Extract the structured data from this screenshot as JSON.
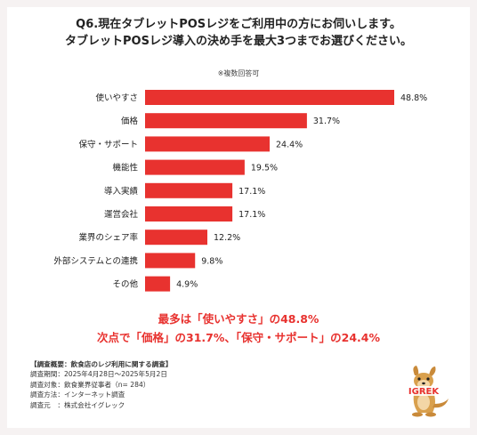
{
  "title_lines": [
    "Q6.現在タブレットPOSレジをご利用中の方にお伺いします。",
    "タブレットPOSレジ導入の決め手を最大3つまでお選びください。"
  ],
  "note": "※複数回答可",
  "chart_data": {
    "type": "bar",
    "orientation": "horizontal",
    "categories": [
      "使いやすさ",
      "価格",
      "保守・サポート",
      "機能性",
      "導入実績",
      "運営会社",
      "業界のシェア率",
      "外部システムとの連携",
      "その他"
    ],
    "values": [
      48.8,
      31.7,
      24.4,
      19.5,
      17.1,
      17.1,
      12.2,
      9.8,
      4.9
    ],
    "value_labels": [
      "48.8%",
      "31.7%",
      "24.4%",
      "19.5%",
      "17.1%",
      "17.1%",
      "12.2%",
      "9.8%",
      "4.9%"
    ],
    "bar_color": "#e8322f",
    "xlim": [
      0,
      48.8
    ]
  },
  "summary_lines": [
    "最多は「使いやすさ」の48.8%",
    "次点で「価格」の31.7%、「保守・サポート」の24.4%"
  ],
  "survey": {
    "heading": "【調査概要：飲食店のレジ利用に関する調査】",
    "lines": [
      "調査期間：2025年4月28日〜2025年5月2日",
      "調査対象：飲食業界従事者（n= 284）",
      "調査方法：インターネット調査",
      "調査元　：株式会社イグレック"
    ]
  },
  "logo_text": "IGREK"
}
